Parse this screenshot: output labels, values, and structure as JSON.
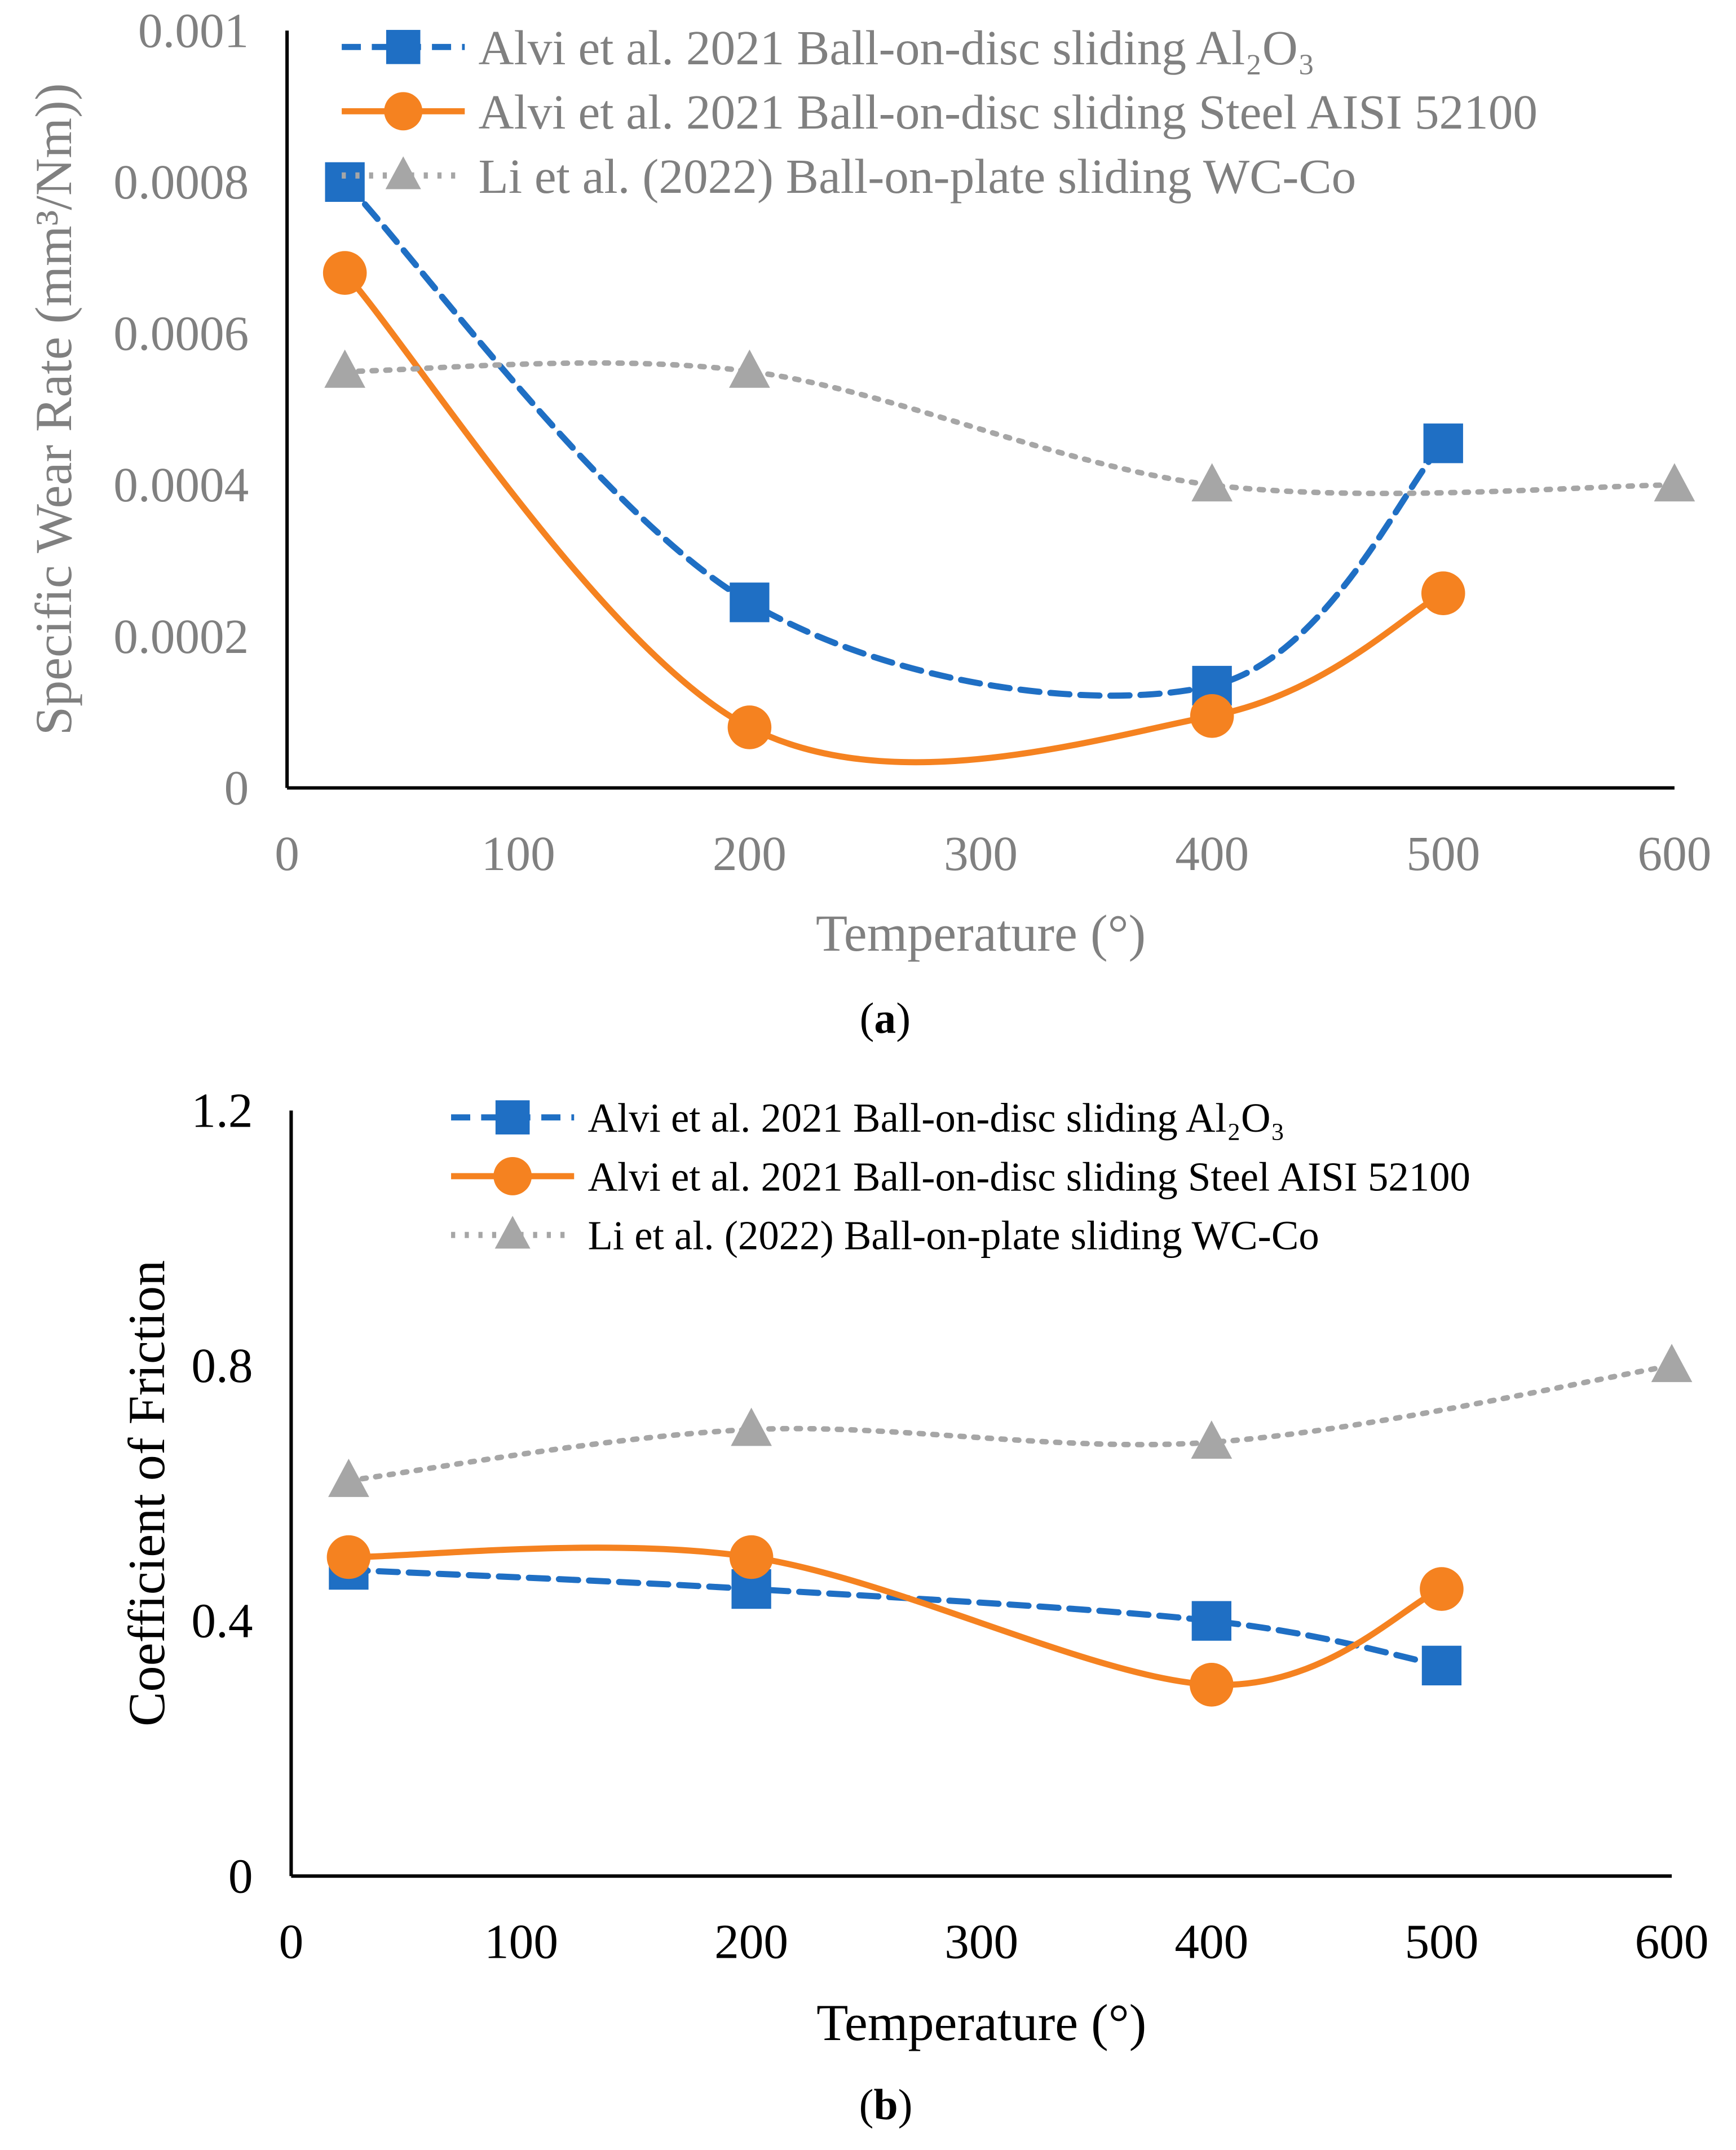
{
  "colors": {
    "al2o3": "#1f6fc4",
    "steel": "#f58220",
    "wc": "#a6a6a6",
    "axis_text_a": "#808080",
    "axis_text_b": "#000000"
  },
  "chart_data": [
    {
      "type": "line",
      "caption": "(a)",
      "caption_letter": "a",
      "xlabel": "Temperature (°)",
      "ylabel": "Specific Wear Rate (mm³/Nm))",
      "xlim": [
        0,
        600
      ],
      "ylim": [
        0,
        0.001
      ],
      "x_ticks": [
        "0",
        "100",
        "200",
        "300",
        "400",
        "500",
        "600"
      ],
      "x_tick_values": [
        0,
        100,
        200,
        300,
        400,
        500,
        600
      ],
      "y_ticks": [
        "0",
        "0.0002",
        "0.0004",
        "0.0006",
        "0.0008",
        "0.001"
      ],
      "y_tick_values": [
        0,
        0.0002,
        0.0004,
        0.0006,
        0.0008,
        0.001
      ],
      "legend_position": "top",
      "series": [
        {
          "name": "Alvi et al. 2021 Ball-on-disc sliding Al₂O₃",
          "key": "al2o3",
          "marker": "square",
          "style": "dashed",
          "x": [
            25,
            200,
            400,
            500
          ],
          "y": [
            0.0008,
            0.000245,
            0.000135,
            0.000455
          ]
        },
        {
          "name": "Alvi et al. 2021 Ball-on-disc sliding Steel AISI 52100",
          "key": "steel",
          "marker": "circle",
          "style": "solid",
          "x": [
            25,
            200,
            400,
            500
          ],
          "y": [
            0.00068,
            8e-05,
            9.5e-05,
            0.000257
          ]
        },
        {
          "name": "Li et al. (2022) Ball-on-plate sliding WC-Co",
          "key": "wc",
          "marker": "triangle",
          "style": "dotted",
          "x": [
            25,
            200,
            400,
            600
          ],
          "y": [
            0.00055,
            0.00055,
            0.0004,
            0.0004
          ]
        }
      ]
    },
    {
      "type": "line",
      "caption": "(b)",
      "caption_letter": "b",
      "xlabel": "Temperature (°)",
      "ylabel": "Coefficient of Friction",
      "xlim": [
        0,
        600
      ],
      "ylim": [
        0,
        1.2
      ],
      "x_ticks": [
        "0",
        "100",
        "200",
        "300",
        "400",
        "500",
        "600"
      ],
      "x_tick_values": [
        0,
        100,
        200,
        300,
        400,
        500,
        600
      ],
      "y_ticks": [
        "0",
        "0.4",
        "0.8",
        "1.2"
      ],
      "y_tick_values": [
        0,
        0.4,
        0.8,
        1.2
      ],
      "legend_position": "top",
      "series": [
        {
          "name": "Alvi et al. 2021 Ball-on-disc sliding Al₂O₃",
          "key": "al2o3",
          "marker": "square",
          "style": "dashed",
          "x": [
            25,
            200,
            400,
            500
          ],
          "y": [
            0.48,
            0.45,
            0.4,
            0.33
          ]
        },
        {
          "name": "Alvi et al. 2021 Ball-on-disc sliding Steel AISI 52100",
          "key": "steel",
          "marker": "circle",
          "style": "solid",
          "x": [
            25,
            200,
            400,
            500
          ],
          "y": [
            0.5,
            0.5,
            0.3,
            0.45
          ]
        },
        {
          "name": "Li et al. (2022) Ball-on-plate sliding WC-Co",
          "key": "wc",
          "marker": "triangle",
          "style": "dotted",
          "x": [
            25,
            200,
            400,
            600
          ],
          "y": [
            0.62,
            0.7,
            0.68,
            0.8
          ]
        }
      ]
    }
  ]
}
